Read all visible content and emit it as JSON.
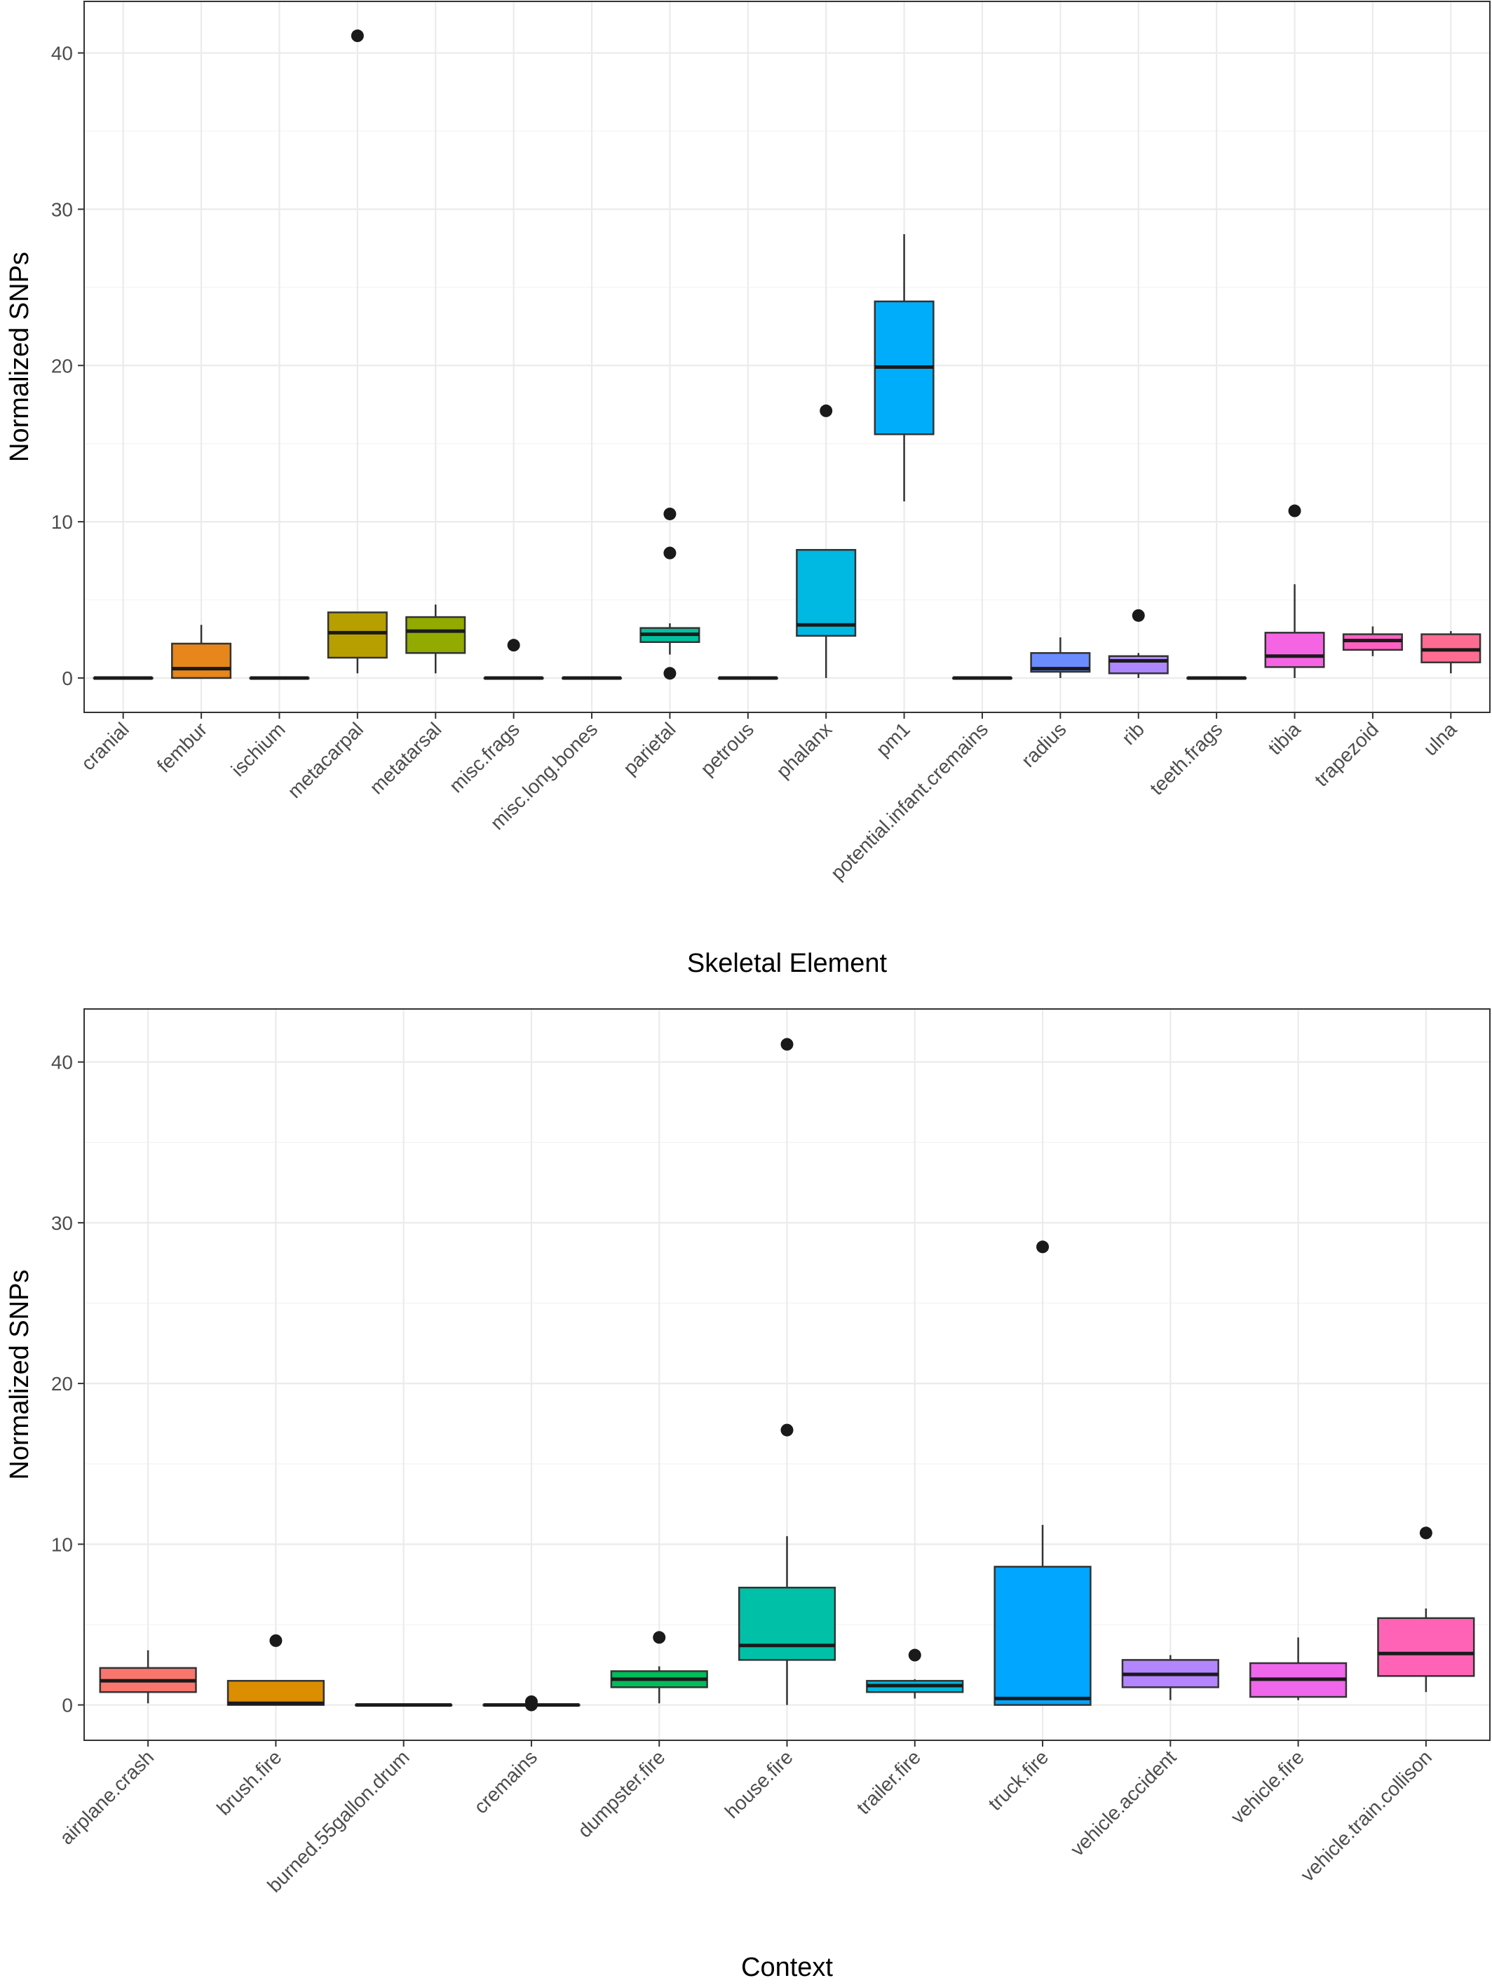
{
  "chart_data": [
    {
      "type": "box",
      "xlabel": "Skeletal Element",
      "ylabel": "Normalized SNPs",
      "ylim": [
        -2.2,
        43.3
      ],
      "yticks": [
        0,
        10,
        20,
        30,
        40
      ],
      "grid": true,
      "legend": "none",
      "categories": [
        "cranial",
        "fembur",
        "ischium",
        "metacarpal",
        "metatarsal",
        "misc.frags",
        "misc.long.bones",
        "parietal",
        "petrous",
        "phalanx",
        "pm1",
        "potential.infant.cremains",
        "radius",
        "rib",
        "teeth.frags",
        "tibia",
        "trapezoid",
        "ulna"
      ],
      "colors": [
        "#F8766D",
        "#E7861B",
        "#D39200",
        "#B79F00",
        "#93AA00",
        "#5EB300",
        "#00BA38",
        "#00C19F",
        "#00BFC4",
        "#00B9E3",
        "#00ADFA",
        "#619CFF",
        "#6B8CFF",
        "#AE87FF",
        "#DB72FB",
        "#F564E3",
        "#FF61C3",
        "#FF6C91"
      ],
      "boxes": [
        {
          "min": 0,
          "q1": 0,
          "median": 0,
          "q3": 0,
          "max": 0,
          "outliers": []
        },
        {
          "min": 0,
          "q1": 0,
          "median": 0.6,
          "q3": 2.2,
          "max": 3.4,
          "outliers": []
        },
        {
          "min": 0,
          "q1": 0,
          "median": 0,
          "q3": 0,
          "max": 0,
          "outliers": []
        },
        {
          "min": 0.3,
          "q1": 1.3,
          "median": 2.9,
          "q3": 4.2,
          "max": 4.2,
          "outliers": [
            41.1
          ]
        },
        {
          "min": 0.3,
          "q1": 1.6,
          "median": 3.0,
          "q3": 3.9,
          "max": 4.7,
          "outliers": []
        },
        {
          "min": 0,
          "q1": 0,
          "median": 0,
          "q3": 0,
          "max": 0,
          "outliers": [
            2.1
          ]
        },
        {
          "min": 0,
          "q1": 0,
          "median": 0,
          "q3": 0,
          "max": 0,
          "outliers": []
        },
        {
          "min": 1.5,
          "q1": 2.3,
          "median": 2.8,
          "q3": 3.2,
          "max": 3.5,
          "outliers": [
            10.5,
            8.0,
            0.3
          ]
        },
        {
          "min": 0,
          "q1": 0,
          "median": 0,
          "q3": 0,
          "max": 0,
          "outliers": []
        },
        {
          "min": 0,
          "q1": 2.7,
          "median": 3.4,
          "q3": 8.2,
          "max": 8.2,
          "outliers": [
            17.1
          ]
        },
        {
          "min": 11.3,
          "q1": 15.6,
          "median": 19.9,
          "q3": 24.1,
          "max": 28.4,
          "outliers": []
        },
        {
          "min": 0,
          "q1": 0,
          "median": 0,
          "q3": 0,
          "max": 0,
          "outliers": []
        },
        {
          "min": 0,
          "q1": 0.4,
          "median": 0.6,
          "q3": 1.6,
          "max": 2.6,
          "outliers": []
        },
        {
          "min": 0,
          "q1": 0.3,
          "median": 1.1,
          "q3": 1.4,
          "max": 1.6,
          "outliers": [
            4.0
          ]
        },
        {
          "min": 0,
          "q1": 0,
          "median": 0,
          "q3": 0,
          "max": 0,
          "outliers": []
        },
        {
          "min": 0,
          "q1": 0.7,
          "median": 1.4,
          "q3": 2.9,
          "max": 6.0,
          "outliers": [
            10.7
          ]
        },
        {
          "min": 1.4,
          "q1": 1.8,
          "median": 2.4,
          "q3": 2.8,
          "max": 3.3,
          "outliers": []
        },
        {
          "min": 0.3,
          "q1": 1.0,
          "median": 1.8,
          "q3": 2.8,
          "max": 3.0,
          "outliers": []
        }
      ]
    },
    {
      "type": "box",
      "xlabel": "Context",
      "ylabel": "Normalized SNPs",
      "ylim": [
        -2.2,
        43.3
      ],
      "yticks": [
        0,
        10,
        20,
        30,
        40
      ],
      "grid": true,
      "legend": "none",
      "categories": [
        "airplane.crash",
        "brush.fire",
        "burned.55gallon.drum",
        "cremains",
        "dumpster.fire",
        "house.fire",
        "trailer.fire",
        "truck.fire",
        "vehicle.accident",
        "vehicle.fire",
        "vehicle.train.collison"
      ],
      "colors": [
        "#F8766D",
        "#DB8E00",
        "#AEA200",
        "#64B200",
        "#00BD5C",
        "#00C1A7",
        "#00BADE",
        "#00A6FF",
        "#B385FF",
        "#EF67EB",
        "#FF63B6"
      ],
      "boxes": [
        {
          "min": 0.1,
          "q1": 0.8,
          "median": 1.5,
          "q3": 2.3,
          "max": 3.4,
          "outliers": []
        },
        {
          "min": 0,
          "q1": 0,
          "median": 0.1,
          "q3": 1.5,
          "max": 1.5,
          "outliers": [
            4.0
          ]
        },
        {
          "min": 0,
          "q1": 0,
          "median": 0,
          "q3": 0,
          "max": 0,
          "outliers": []
        },
        {
          "min": 0,
          "q1": 0,
          "median": 0,
          "q3": 0,
          "max": 0,
          "outliers": [
            0.2,
            0.0
          ]
        },
        {
          "min": 0.1,
          "q1": 1.1,
          "median": 1.6,
          "q3": 2.1,
          "max": 2.4,
          "outliers": [
            4.2
          ]
        },
        {
          "min": 0,
          "q1": 2.8,
          "median": 3.7,
          "q3": 7.3,
          "max": 10.5,
          "outliers": [
            41.1,
            17.1
          ]
        },
        {
          "min": 0.4,
          "q1": 0.8,
          "median": 1.2,
          "q3": 1.5,
          "max": 1.6,
          "outliers": [
            3.1
          ]
        },
        {
          "min": 0,
          "q1": 0,
          "median": 0.4,
          "q3": 8.6,
          "max": 11.2,
          "outliers": [
            28.5
          ]
        },
        {
          "min": 0.3,
          "q1": 1.1,
          "median": 1.9,
          "q3": 2.8,
          "max": 3.1,
          "outliers": []
        },
        {
          "min": 0.3,
          "q1": 0.5,
          "median": 1.6,
          "q3": 2.6,
          "max": 4.2,
          "outliers": []
        },
        {
          "min": 0.8,
          "q1": 1.8,
          "median": 3.2,
          "q3": 5.4,
          "max": 6.0,
          "outliers": [
            10.7
          ]
        }
      ]
    }
  ]
}
